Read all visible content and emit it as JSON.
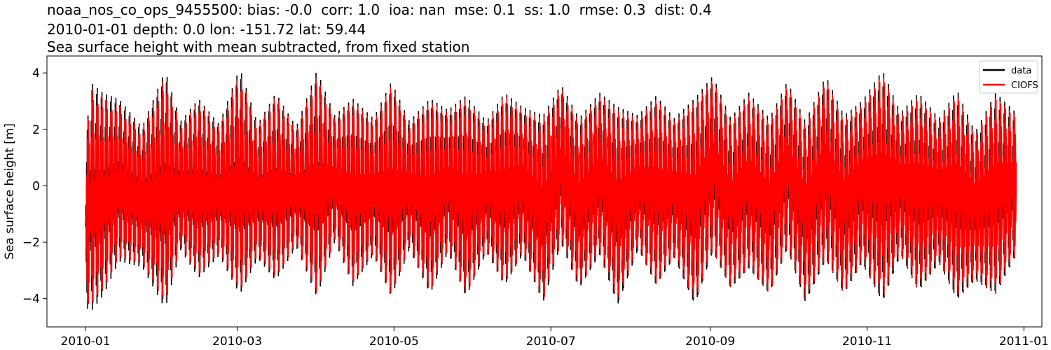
{
  "title_lines": [
    "noaa_nos_co_ops_9455500: bias: -0.0  corr: 1.0  ioa: nan  mse: 0.1  ss: 1.0  rmse: 0.3  dist: 0.4",
    "2010-01-01 depth: 0.0 lon: -151.72 lat: 59.44",
    "Sea surface height with mean subtracted, from fixed station"
  ],
  "chart_data": {
    "type": "line",
    "ylabel": "Sea surface height [m]",
    "xlabel": "",
    "ylim": [
      -5,
      4.6
    ],
    "yticks": [
      -4,
      -2,
      0,
      2,
      4
    ],
    "yticklabels": [
      "−4",
      "−2",
      "0",
      "2",
      "4"
    ],
    "xlim": [
      "2009-12-17",
      "2011-01-08"
    ],
    "xticks": [
      "2010-01-01",
      "2010-03-01",
      "2010-05-01",
      "2010-07-01",
      "2010-09-01",
      "2010-11-01",
      "2011-01-01"
    ],
    "xticklabels": [
      "2010-01",
      "2010-03",
      "2010-05",
      "2010-07",
      "2010-09",
      "2010-11",
      "2011-01"
    ],
    "x_range": [
      "2010-01-01",
      "2010-12-29"
    ],
    "grid": false,
    "legend_position": "top-right",
    "series": [
      {
        "name": "data",
        "color": "#000000",
        "envelope": {
          "x": [
            "2010-01-01",
            "2010-01-03",
            "2010-01-08",
            "2010-01-14",
            "2010-01-23",
            "2010-02-01",
            "2010-02-07",
            "2010-02-14",
            "2010-02-22",
            "2010-03-02",
            "2010-03-09",
            "2010-03-16",
            "2010-03-24",
            "2010-04-01",
            "2010-04-08",
            "2010-04-15",
            "2010-04-23",
            "2010-04-30",
            "2010-05-07",
            "2010-05-15",
            "2010-05-22",
            "2010-05-29",
            "2010-06-06",
            "2010-06-13",
            "2010-06-20",
            "2010-06-28",
            "2010-07-05",
            "2010-07-12",
            "2010-07-20",
            "2010-07-27",
            "2010-08-04",
            "2010-08-11",
            "2010-08-18",
            "2010-08-26",
            "2010-09-02",
            "2010-09-09",
            "2010-09-16",
            "2010-09-24",
            "2010-10-01",
            "2010-10-08",
            "2010-10-16",
            "2010-10-23",
            "2010-10-30",
            "2010-11-07",
            "2010-11-14",
            "2010-11-21",
            "2010-11-29",
            "2010-12-06",
            "2010-12-13",
            "2010-12-21",
            "2010-12-29"
          ],
          "upper": [
            1.4,
            3.7,
            3.3,
            3.1,
            2.1,
            4.1,
            2.3,
            3.1,
            2.2,
            4.2,
            2.2,
            3.3,
            2.1,
            4.1,
            2.5,
            3.1,
            2.4,
            3.7,
            2.3,
            3.1,
            2.7,
            3.2,
            2.3,
            3.3,
            2.8,
            2.5,
            3.6,
            2.4,
            3.3,
            2.8,
            2.5,
            3.2,
            2.4,
            3.1,
            3.9,
            2.4,
            3.3,
            2.4,
            3.7,
            2.3,
            3.9,
            2.5,
            3.0,
            4.1,
            2.6,
            3.3,
            2.4,
            3.4,
            1.9,
            3.3,
            2.6
          ],
          "lower": [
            -4.3,
            -4.5,
            -3.9,
            -2.7,
            -2.9,
            -4.4,
            -2.3,
            -3.3,
            -2.5,
            -3.9,
            -2.6,
            -3.4,
            -2.2,
            -4.0,
            -2.0,
            -3.6,
            -2.5,
            -4.0,
            -2.3,
            -3.9,
            -2.4,
            -4.0,
            -2.4,
            -3.6,
            -2.5,
            -4.2,
            -2.1,
            -3.7,
            -2.5,
            -4.3,
            -2.3,
            -3.6,
            -2.6,
            -4.3,
            -2.4,
            -3.7,
            -3.0,
            -3.9,
            -2.3,
            -4.2,
            -2.7,
            -3.9,
            -2.8,
            -4.2,
            -2.5,
            -3.8,
            -2.8,
            -4.1,
            -3.4,
            -3.9,
            -2.5
          ]
        }
      },
      {
        "name": "CIOFS",
        "color": "#ff0000",
        "envelope": {
          "x": [
            "2010-01-01",
            "2010-01-03",
            "2010-01-08",
            "2010-01-14",
            "2010-01-23",
            "2010-02-01",
            "2010-02-07",
            "2010-02-14",
            "2010-02-22",
            "2010-03-02",
            "2010-03-09",
            "2010-03-16",
            "2010-03-24",
            "2010-04-01",
            "2010-04-08",
            "2010-04-15",
            "2010-04-23",
            "2010-04-30",
            "2010-05-07",
            "2010-05-15",
            "2010-05-22",
            "2010-05-29",
            "2010-06-06",
            "2010-06-13",
            "2010-06-20",
            "2010-06-28",
            "2010-07-05",
            "2010-07-12",
            "2010-07-20",
            "2010-07-27",
            "2010-08-04",
            "2010-08-11",
            "2010-08-18",
            "2010-08-26",
            "2010-09-02",
            "2010-09-09",
            "2010-09-16",
            "2010-09-24",
            "2010-10-01",
            "2010-10-08",
            "2010-10-16",
            "2010-10-23",
            "2010-10-30",
            "2010-11-07",
            "2010-11-14",
            "2010-11-21",
            "2010-11-29",
            "2010-12-06",
            "2010-12-13",
            "2010-12-21",
            "2010-12-29"
          ],
          "upper": [
            1.3,
            3.5,
            3.1,
            2.9,
            2.0,
            3.9,
            2.2,
            3.0,
            2.1,
            4.0,
            2.1,
            3.2,
            2.0,
            3.9,
            2.4,
            3.0,
            2.3,
            3.6,
            2.2,
            3.0,
            2.6,
            3.1,
            2.2,
            3.2,
            2.7,
            2.4,
            3.5,
            2.3,
            3.2,
            2.7,
            2.4,
            3.1,
            2.3,
            3.0,
            3.8,
            2.3,
            3.2,
            2.3,
            3.6,
            2.2,
            3.8,
            2.4,
            2.9,
            4.0,
            2.5,
            3.2,
            2.3,
            3.3,
            1.8,
            3.2,
            2.5
          ],
          "lower": [
            -4.2,
            -4.3,
            -3.7,
            -2.6,
            -2.8,
            -4.2,
            -2.2,
            -3.2,
            -2.4,
            -3.8,
            -2.5,
            -3.3,
            -2.1,
            -3.9,
            -1.9,
            -3.5,
            -2.4,
            -3.9,
            -2.2,
            -3.8,
            -2.3,
            -3.9,
            -2.3,
            -3.5,
            -2.4,
            -4.1,
            -2.0,
            -3.6,
            -2.4,
            -4.1,
            -2.2,
            -3.5,
            -2.5,
            -4.1,
            -2.3,
            -3.6,
            -2.9,
            -3.8,
            -2.2,
            -4.0,
            -2.6,
            -3.8,
            -2.7,
            -4.0,
            -2.4,
            -3.7,
            -2.7,
            -3.9,
            -3.3,
            -3.8,
            -2.4
          ]
        }
      }
    ]
  }
}
